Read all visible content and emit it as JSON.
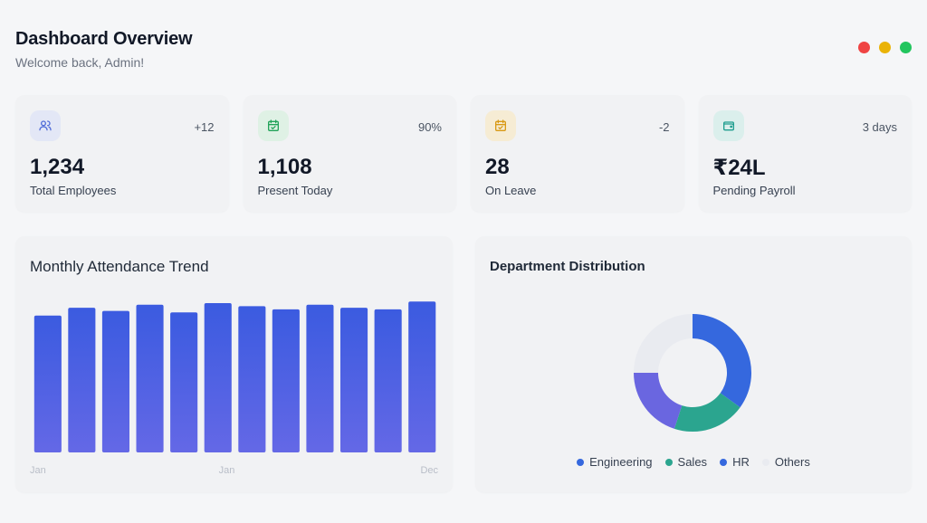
{
  "header": {
    "title": "Dashboard Overview",
    "subtitle": "Welcome back, Admin!"
  },
  "window_dots": [
    {
      "name": "close-dot",
      "color": "#ef4444"
    },
    {
      "name": "minimize-dot",
      "color": "#eab308"
    },
    {
      "name": "maximize-dot",
      "color": "#22c55e"
    }
  ],
  "stats": [
    {
      "icon": "users-icon",
      "icon_color": "#4f6bd8",
      "icon_bg": "#e3e7f6",
      "badge": "+12",
      "value": "1,234",
      "label": "Total Employees"
    },
    {
      "icon": "calendar-check-icon",
      "icon_color": "#22a35a",
      "icon_bg": "#dff1e5",
      "badge": "90%",
      "value": "1,108",
      "label": "Present Today"
    },
    {
      "icon": "calendar-icon",
      "icon_color": "#d99a16",
      "icon_bg": "#f6ecd4",
      "badge": "-2",
      "value": "28",
      "label": "On Leave"
    },
    {
      "icon": "wallet-icon",
      "icon_color": "#1f9e8f",
      "icon_bg": "#dbefec",
      "badge": "3 days",
      "value": "₹24L",
      "label": "Pending Payroll"
    }
  ],
  "attendance": {
    "title": "Monthly Attendance Trend"
  },
  "distribution": {
    "title": "Department Distribution"
  },
  "chart_data": [
    {
      "type": "bar",
      "title": "Monthly Attendance Trend",
      "values": [
        88,
        93,
        91,
        95,
        90,
        96,
        94,
        92,
        95,
        93,
        92,
        97
      ],
      "ylim": [
        0,
        100
      ],
      "tick_labels": [
        "Jan",
        "Jan",
        "Dec"
      ],
      "color_top": "#3b5be0",
      "color_bottom": "#6468e6"
    },
    {
      "type": "pie",
      "title": "Department Distribution",
      "labels": [
        "Engineering",
        "Sales",
        "HR",
        "Others"
      ],
      "values": [
        35,
        20,
        20,
        25
      ],
      "colors": [
        "#3568de",
        "#2ba58f",
        "#6a66e0",
        "#e9ebf0"
      ],
      "legend_colors": [
        "#3568de",
        "#2ba58f",
        "#3568de",
        "#e9ebf0"
      ]
    }
  ]
}
